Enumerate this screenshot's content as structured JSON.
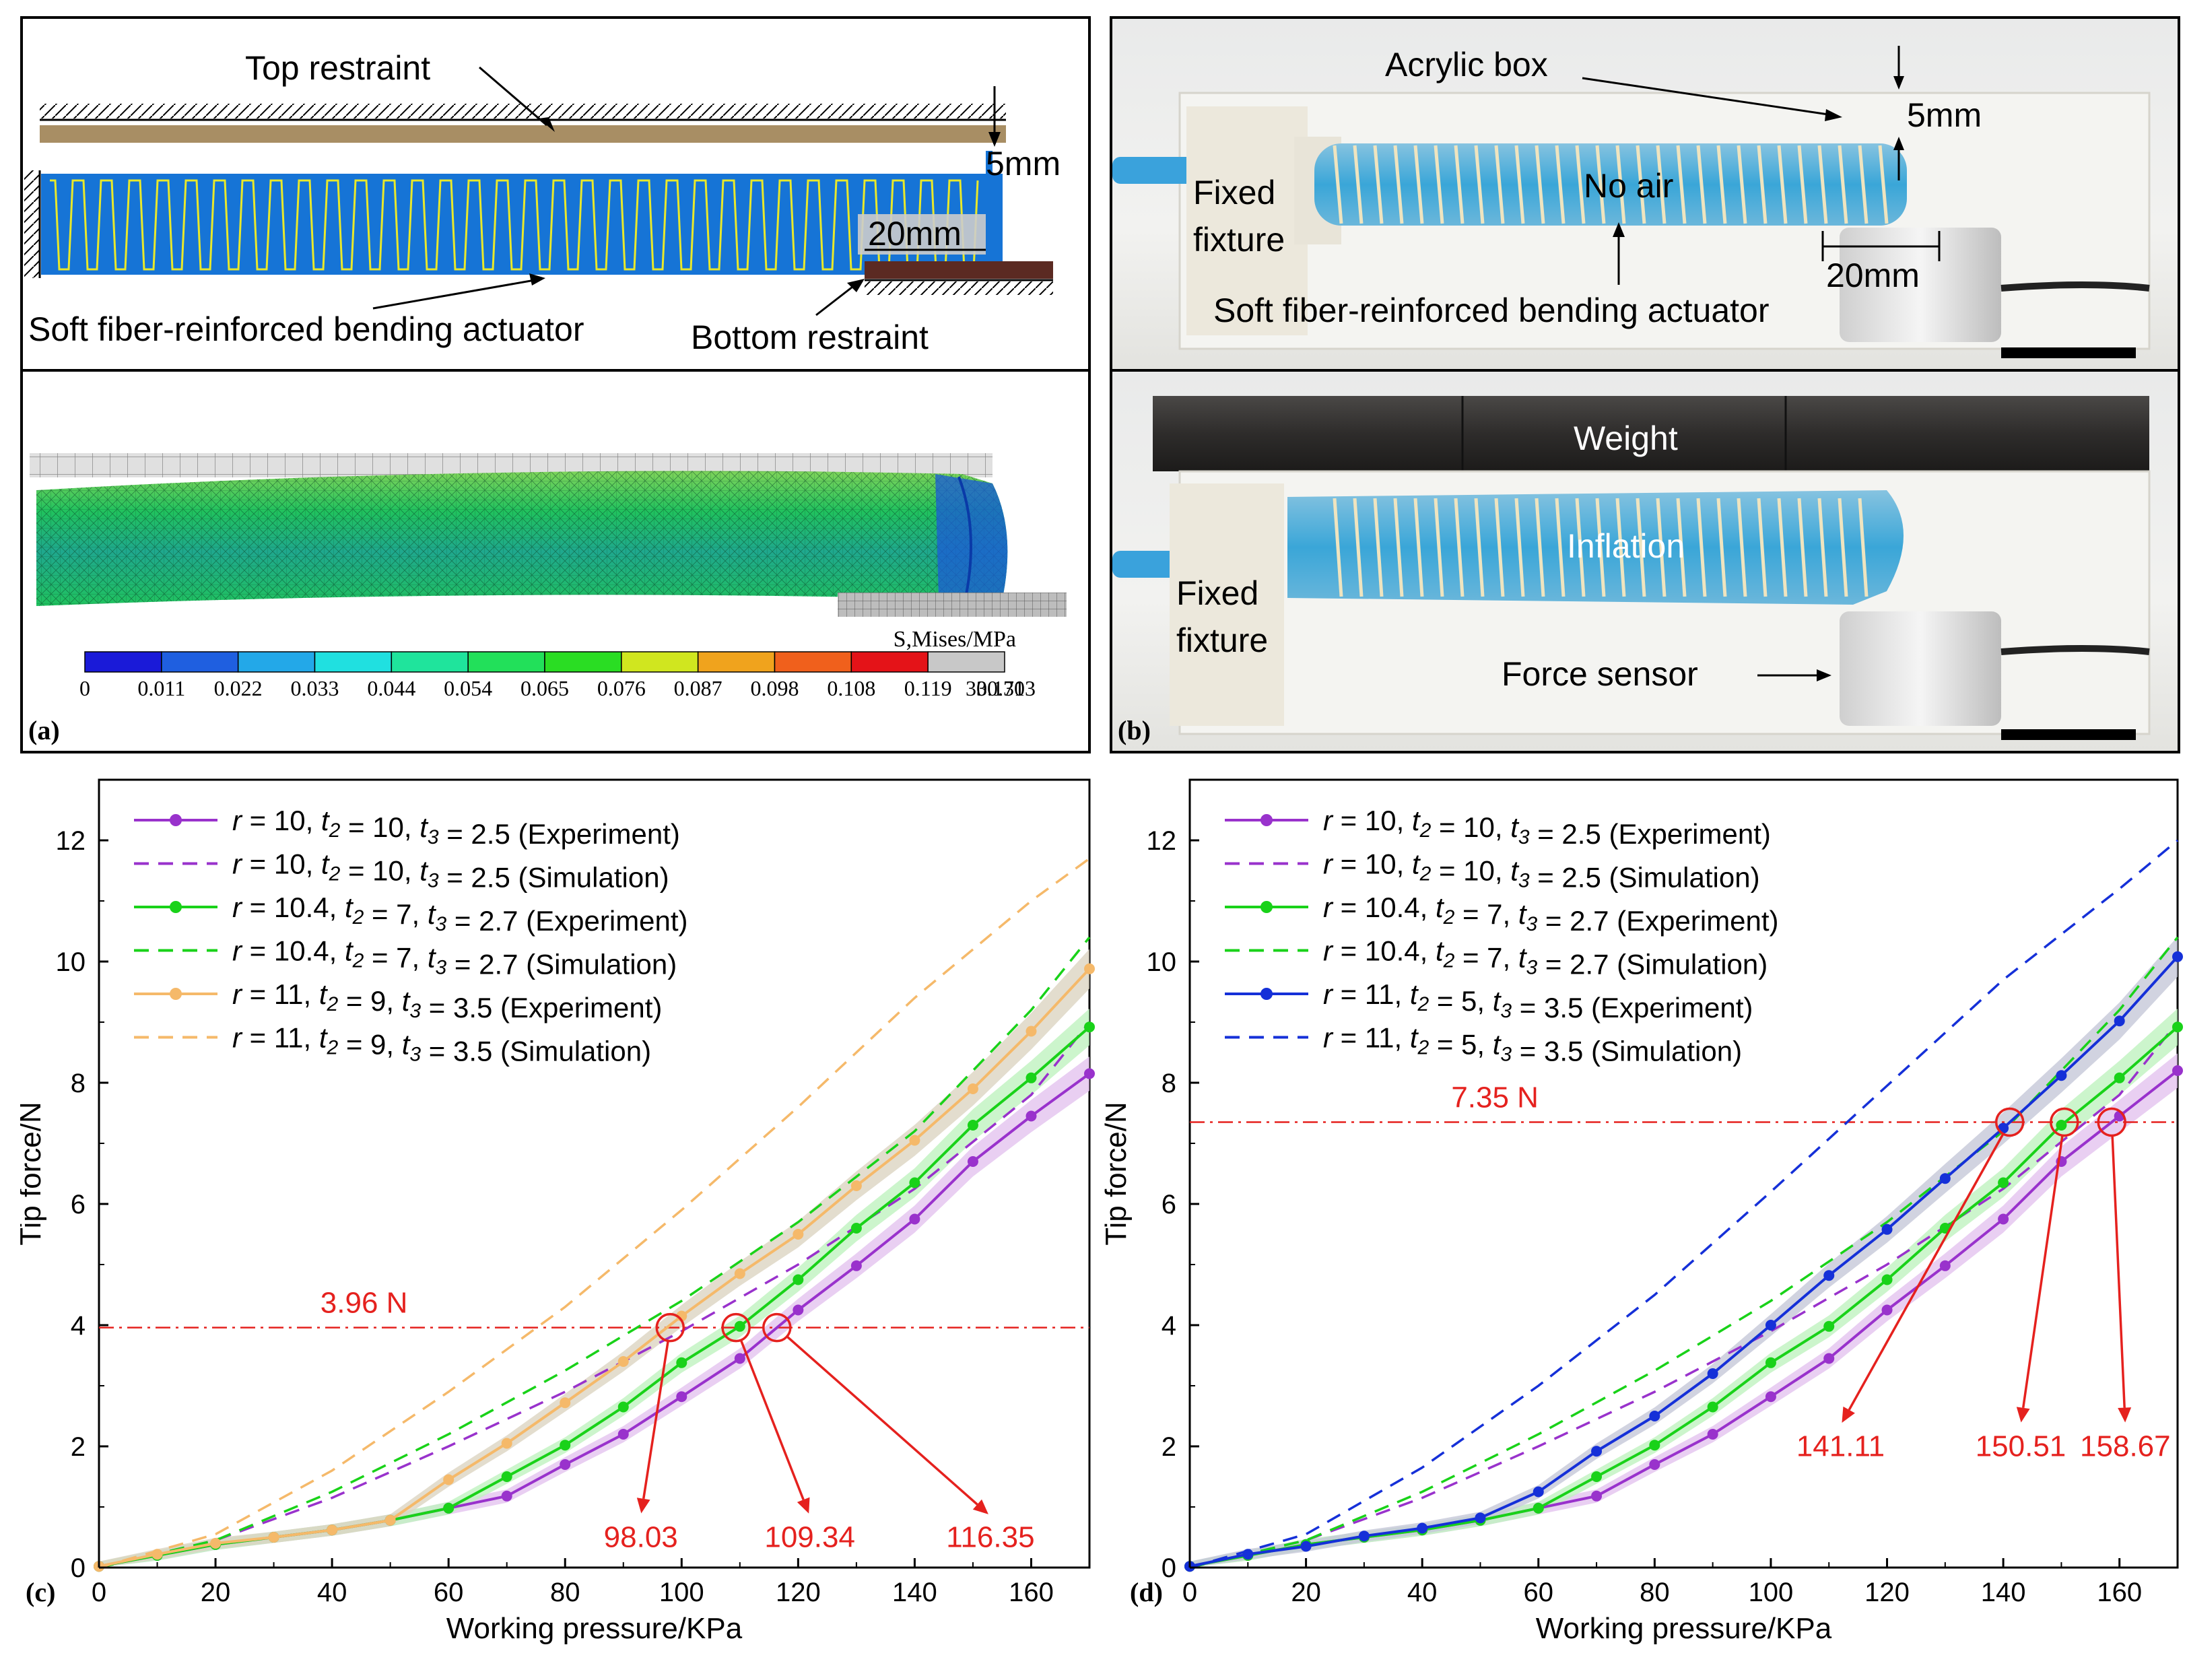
{
  "figure": {
    "panel_a": {
      "letter": "(a)",
      "labels": {
        "top_restraint": "Top restraint",
        "gap": "5mm",
        "overlap": "20mm",
        "actuator": "Soft fiber-reinforced bending actuator",
        "bottom_restraint": "Bottom restraint"
      },
      "colorbar": {
        "title": "S,Mises/MPa",
        "colors": [
          "#1a1ad8",
          "#1f5fe0",
          "#23a8e8",
          "#20e0e0",
          "#1fe49c",
          "#22e05a",
          "#2add23",
          "#d0e61f",
          "#f0a31d",
          "#f0601c",
          "#e41318",
          "#c8c8c8"
        ],
        "ticks": [
          "0",
          "0.011",
          "0.022",
          "0.033",
          "0.044",
          "0.054",
          "0.065",
          "0.076",
          "0.087",
          "0.098",
          "0.108",
          "0.119",
          "0.130",
          "330.713"
        ]
      }
    },
    "panel_b": {
      "letter": "(b)",
      "top": {
        "acrylic_box": "Acrylic box",
        "gap": "5mm",
        "fixed_fixture": [
          "Fixed",
          "fixture"
        ],
        "no_air": "No air",
        "overlap": "20mm",
        "actuator": "Soft fiber-reinforced bending actuator"
      },
      "bottom": {
        "weight": "Weight",
        "inflation": "Inflation",
        "fixed_fixture": [
          "Fixed",
          "fixture"
        ],
        "force_sensor": "Force sensor"
      }
    }
  },
  "chart_data": [
    {
      "panel": "(c)",
      "type": "line",
      "xlabel": "Working pressure/KPa",
      "ylabel": "Tip force/N",
      "xlim": [
        0,
        170
      ],
      "ylim": [
        0,
        13
      ],
      "xticks": [
        "0",
        "20",
        "40",
        "60",
        "80",
        "100",
        "120",
        "140",
        "160"
      ],
      "yticks": [
        "0",
        "2",
        "4",
        "6",
        "8",
        "10",
        "12"
      ],
      "legend_position": "top-left",
      "legend": [
        {
          "pre": "r",
          "a": " = 10, ",
          "t2": "10",
          "t3": "2.5",
          "kind": "(Experiment)",
          "color": "#9932cc",
          "style": "solid"
        },
        {
          "pre": "r",
          "a": " = 10, ",
          "t2": "10",
          "t3": "2.5",
          "kind": "(Simulation)",
          "color": "#9932cc",
          "style": "dashed"
        },
        {
          "pre": "r",
          "a": " = 10.4, ",
          "t2": "7",
          "t3": "2.7",
          "kind": "(Experiment)",
          "color": "#19d219",
          "style": "solid"
        },
        {
          "pre": "r",
          "a": " = 10.4, ",
          "t2": "7",
          "t3": "2.7",
          "kind": "(Simulation)",
          "color": "#19d219",
          "style": "dashed"
        },
        {
          "pre": "r",
          "a": " = 11, ",
          "t2": "9",
          "t3": "3.5",
          "kind": "(Experiment)",
          "color": "#f5b96a",
          "style": "solid"
        },
        {
          "pre": "r",
          "a": " = 11, ",
          "t2": "9",
          "t3": "3.5",
          "kind": "(Simulation)",
          "color": "#f5b96a",
          "style": "dashed"
        }
      ],
      "series": [
        {
          "name": "r=10 Experiment",
          "color": "#9932cc",
          "style": "solid",
          "band": "#e4c3ef",
          "x": [
            0,
            10,
            20,
            30,
            40,
            50,
            60,
            70,
            80,
            90,
            100,
            110,
            120,
            130,
            140,
            150,
            160,
            170
          ],
          "y": [
            0.02,
            0.2,
            0.38,
            0.5,
            0.62,
            0.78,
            0.98,
            1.18,
            1.7,
            2.2,
            2.82,
            3.45,
            4.25,
            4.98,
            5.75,
            6.7,
            7.45,
            8.15
          ]
        },
        {
          "name": "r=10 Simulation",
          "color": "#9932cc",
          "style": "dashed",
          "x": [
            0,
            20,
            40,
            60,
            80,
            100,
            120,
            140,
            160,
            170
          ],
          "y": [
            0.0,
            0.45,
            1.15,
            2.0,
            2.9,
            3.9,
            5.0,
            6.25,
            7.8,
            9.0
          ]
        },
        {
          "name": "r=10.4 Experiment",
          "color": "#19d219",
          "style": "solid",
          "band": "#bff2bf",
          "x": [
            0,
            10,
            20,
            30,
            40,
            50,
            60,
            70,
            80,
            90,
            100,
            110,
            120,
            130,
            140,
            150,
            160,
            170
          ],
          "y": [
            0.02,
            0.2,
            0.38,
            0.5,
            0.62,
            0.78,
            0.98,
            1.5,
            2.02,
            2.65,
            3.38,
            3.98,
            4.75,
            5.6,
            6.35,
            7.3,
            8.08,
            8.92
          ]
        },
        {
          "name": "r=10.4 Simulation",
          "color": "#19d219",
          "style": "dashed",
          "x": [
            0,
            20,
            40,
            60,
            80,
            100,
            120,
            140,
            160,
            170
          ],
          "y": [
            0.0,
            0.45,
            1.25,
            2.2,
            3.25,
            4.4,
            5.7,
            7.2,
            9.2,
            10.4
          ]
        },
        {
          "name": "r=11 Experiment",
          "color": "#f5b96a",
          "style": "solid",
          "band": "#dcd5c2",
          "x": [
            0,
            10,
            20,
            30,
            40,
            50,
            60,
            70,
            80,
            90,
            100,
            110,
            120,
            130,
            140,
            150,
            160,
            170
          ],
          "y": [
            0.02,
            0.22,
            0.4,
            0.5,
            0.62,
            0.78,
            1.45,
            2.05,
            2.72,
            3.4,
            4.15,
            4.85,
            5.5,
            6.3,
            7.05,
            7.9,
            8.85,
            9.88
          ]
        },
        {
          "name": "r=11 Simulation",
          "color": "#f5b96a",
          "style": "dashed",
          "x": [
            0,
            20,
            40,
            60,
            80,
            100,
            120,
            140,
            160,
            170
          ],
          "y": [
            0.0,
            0.55,
            1.6,
            2.9,
            4.3,
            5.9,
            7.6,
            9.4,
            11.0,
            11.7
          ]
        }
      ],
      "reference": {
        "y": 3.96,
        "label": "3.96 N",
        "label_x": 38
      },
      "annotations": [
        {
          "x": 98.03,
          "y": 3.96,
          "label": "98.03",
          "tx": 93,
          "ty": 0.85
        },
        {
          "x": 109.34,
          "y": 3.96,
          "label": "109.34",
          "tx": 122,
          "ty": 0.85
        },
        {
          "x": 116.35,
          "y": 3.96,
          "label": "116.35",
          "tx": 153,
          "ty": 0.85
        }
      ]
    },
    {
      "panel": "(d)",
      "type": "line",
      "xlabel": "Working pressure/KPa",
      "ylabel": "Tip force/N",
      "xlim": [
        0,
        170
      ],
      "ylim": [
        0,
        13
      ],
      "xticks": [
        "0",
        "20",
        "40",
        "60",
        "80",
        "100",
        "120",
        "140",
        "160"
      ],
      "yticks": [
        "0",
        "2",
        "4",
        "6",
        "8",
        "10",
        "12"
      ],
      "legend_position": "top-left",
      "legend": [
        {
          "pre": "r",
          "a": " = 10, ",
          "t2": "10",
          "t3": "2.5",
          "kind": "(Experiment)",
          "color": "#9932cc",
          "style": "solid"
        },
        {
          "pre": "r",
          "a": " = 10, ",
          "t2": "10",
          "t3": "2.5",
          "kind": "(Simulation)",
          "color": "#9932cc",
          "style": "dashed"
        },
        {
          "pre": "r",
          "a": " = 10.4, ",
          "t2": "7",
          "t3": "2.7",
          "kind": "(Experiment)",
          "color": "#19d219",
          "style": "solid"
        },
        {
          "pre": "r",
          "a": " = 10.4, ",
          "t2": "7",
          "t3": "2.7",
          "kind": "(Simulation)",
          "color": "#19d219",
          "style": "dashed"
        },
        {
          "pre": "r",
          "a": " = 11, ",
          "t2": "5",
          "t3": "3.5",
          "kind": "(Experiment)",
          "color": "#1530d8",
          "style": "solid"
        },
        {
          "pre": "r",
          "a": " = 11, ",
          "t2": "5",
          "t3": "3.5",
          "kind": "(Simulation)",
          "color": "#1530d8",
          "style": "dashed"
        }
      ],
      "series": [
        {
          "name": "r=10 Experiment",
          "color": "#9932cc",
          "style": "solid",
          "band": "#e4c3ef",
          "x": [
            0,
            10,
            20,
            30,
            40,
            50,
            60,
            70,
            80,
            90,
            100,
            110,
            120,
            130,
            140,
            150,
            160,
            170
          ],
          "y": [
            0.02,
            0.2,
            0.38,
            0.5,
            0.62,
            0.78,
            0.98,
            1.18,
            1.7,
            2.2,
            2.82,
            3.45,
            4.25,
            4.98,
            5.75,
            6.7,
            7.45,
            8.2
          ]
        },
        {
          "name": "r=10 Simulation",
          "color": "#9932cc",
          "style": "dashed",
          "x": [
            0,
            20,
            40,
            60,
            80,
            100,
            120,
            140,
            160,
            170
          ],
          "y": [
            0.0,
            0.45,
            1.15,
            2.0,
            2.9,
            3.9,
            5.0,
            6.25,
            7.8,
            9.0
          ]
        },
        {
          "name": "r=10.4 Experiment",
          "color": "#19d219",
          "style": "solid",
          "band": "#bff2bf",
          "x": [
            0,
            10,
            20,
            30,
            40,
            50,
            60,
            70,
            80,
            90,
            100,
            110,
            120,
            130,
            140,
            150,
            160,
            170
          ],
          "y": [
            0.02,
            0.2,
            0.38,
            0.5,
            0.62,
            0.78,
            0.98,
            1.5,
            2.02,
            2.65,
            3.38,
            3.98,
            4.75,
            5.6,
            6.35,
            7.3,
            8.08,
            8.92
          ]
        },
        {
          "name": "r=10.4 Simulation",
          "color": "#19d219",
          "style": "dashed",
          "x": [
            0,
            20,
            40,
            60,
            80,
            100,
            120,
            140,
            160,
            170
          ],
          "y": [
            0.0,
            0.45,
            1.25,
            2.2,
            3.25,
            4.4,
            5.7,
            7.2,
            9.2,
            10.4
          ]
        },
        {
          "name": "r=11 t2=5 Experiment",
          "color": "#1530d8",
          "style": "solid",
          "band": "#c5c8d8",
          "x": [
            0,
            10,
            20,
            30,
            40,
            50,
            60,
            70,
            80,
            90,
            100,
            110,
            120,
            130,
            140,
            150,
            160,
            170
          ],
          "y": [
            0.02,
            0.22,
            0.35,
            0.52,
            0.65,
            0.82,
            1.25,
            1.92,
            2.5,
            3.2,
            4.0,
            4.82,
            5.58,
            6.42,
            7.25,
            8.12,
            9.02,
            10.08
          ]
        },
        {
          "name": "r=11 t2=5 Simulation",
          "color": "#1530d8",
          "style": "dashed",
          "x": [
            0,
            20,
            40,
            60,
            80,
            100,
            120,
            140,
            160,
            170
          ],
          "y": [
            0.0,
            0.55,
            1.65,
            3.0,
            4.5,
            6.2,
            7.95,
            9.7,
            11.2,
            12.0
          ]
        }
      ],
      "reference": {
        "y": 7.35,
        "label": "7.35 N",
        "label_x": 45
      },
      "annotations": [
        {
          "x": 141.11,
          "y": 7.35,
          "label": "141.11",
          "tx": 112,
          "ty": 2.35
        },
        {
          "x": 150.51,
          "y": 7.35,
          "label": "150.51",
          "tx": 143,
          "ty": 2.35
        },
        {
          "x": 158.67,
          "y": 7.35,
          "label": "158.67",
          "tx": 161,
          "ty": 2.35
        }
      ]
    }
  ]
}
